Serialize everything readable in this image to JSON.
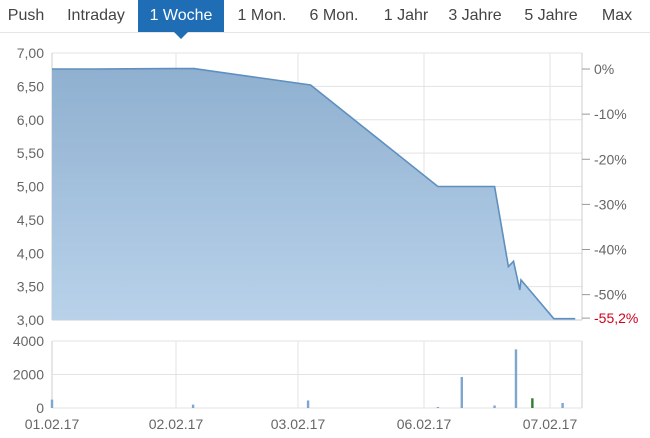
{
  "tabs": [
    {
      "label": "Push",
      "active": false
    },
    {
      "label": "Intraday",
      "active": false
    },
    {
      "label": "1 Woche",
      "active": true
    },
    {
      "label": "1 Mon.",
      "active": false
    },
    {
      "label": "6 Mon.",
      "active": false
    },
    {
      "label": "1 Jahr",
      "active": false
    },
    {
      "label": "3 Jahre",
      "active": false
    },
    {
      "label": "5 Jahre",
      "active": false
    },
    {
      "label": "Max",
      "active": false
    }
  ],
  "colors": {
    "accent": "#1e6db5",
    "area_fill": "#94b6d4",
    "line": "#5f8fbe",
    "volume_bar": "#7ea6cf",
    "volume_highlight": "#2e7d32",
    "negative": "#d0021b"
  },
  "chart_data": [
    {
      "type": "area",
      "ylim": [
        3.0,
        7.0
      ],
      "y_ticks": [
        "3,00",
        "3,50",
        "4,00",
        "4,50",
        "5,00",
        "5,50",
        "6,00",
        "6,50",
        "7,00"
      ],
      "right_axis_ticks": [
        "0%",
        "-10%",
        "-20%",
        "-30%",
        "-40%",
        "-50%",
        "-55,2%"
      ],
      "right_axis_values": [
        0,
        -10,
        -20,
        -30,
        -40,
        -50,
        -55.2
      ],
      "x_ticks": [
        "01.02.17",
        "02.02.17",
        "03.02.17",
        "06.02.17",
        "07.02.17"
      ],
      "points": [
        {
          "x": 0.0,
          "y": 6.76
        },
        {
          "x": 0.36,
          "y": 6.76
        },
        {
          "x": 1.15,
          "y": 6.77
        },
        {
          "x": 1.14,
          "y": 6.77
        },
        {
          "x": 2.1,
          "y": 6.52
        },
        {
          "x": 3.11,
          "y": 5.0
        },
        {
          "x": 3.56,
          "y": 5.0
        },
        {
          "x": 3.67,
          "y": 3.8
        },
        {
          "x": 3.71,
          "y": 3.88
        },
        {
          "x": 3.76,
          "y": 3.45
        },
        {
          "x": 3.77,
          "y": 3.6
        },
        {
          "x": 4.03,
          "y": 3.02
        },
        {
          "x": 4.2,
          "y": 3.02
        }
      ]
    },
    {
      "type": "bar",
      "ylim": [
        0,
        4000
      ],
      "y_ticks": [
        "0",
        "2000",
        "4000"
      ],
      "bars": [
        {
          "x": 0.0,
          "v": 500
        },
        {
          "x": 1.14,
          "v": 200
        },
        {
          "x": 2.08,
          "v": 450
        },
        {
          "x": 3.11,
          "v": 60
        },
        {
          "x": 3.3,
          "v": 1850
        },
        {
          "x": 3.56,
          "v": 150
        },
        {
          "x": 3.73,
          "v": 3500
        },
        {
          "x": 3.86,
          "v": 580,
          "highlight": true
        },
        {
          "x": 4.1,
          "v": 300
        }
      ]
    }
  ]
}
